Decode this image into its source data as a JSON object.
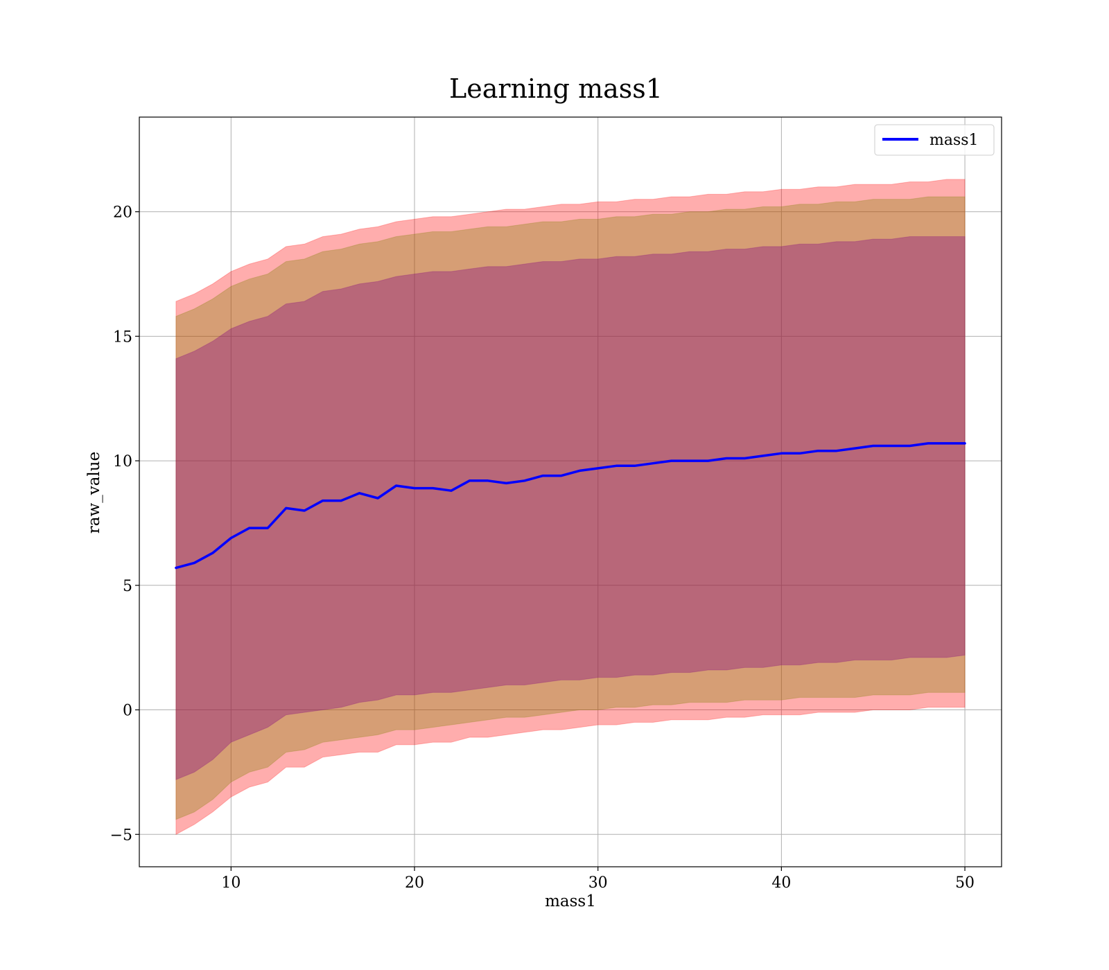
{
  "chart_data": {
    "type": "line",
    "title": "Learning mass1",
    "xlabel": "mass1",
    "ylabel": "raw_value",
    "xlim": [
      5,
      52
    ],
    "ylim": [
      -6.3,
      23.8
    ],
    "xticks": [
      10,
      20,
      30,
      40,
      50
    ],
    "yticks": [
      -5,
      0,
      5,
      10,
      15,
      20
    ],
    "xtick_labels": [
      "10",
      "20",
      "30",
      "40",
      "50"
    ],
    "ytick_labels": [
      "−5",
      "0",
      "5",
      "10",
      "15",
      "20"
    ],
    "grid": true,
    "legend": {
      "placement": "top-right",
      "entries": [
        "mass1"
      ]
    },
    "colors": {
      "line": "#0000ff",
      "band": "#ff0000",
      "band_inner": "#800080",
      "band_mid": "#808000"
    },
    "series": [
      {
        "name": "mass1",
        "x": [
          7,
          8,
          9,
          10,
          11,
          12,
          13,
          14,
          15,
          16,
          17,
          18,
          19,
          20,
          21,
          22,
          23,
          24,
          25,
          26,
          27,
          28,
          29,
          30,
          31,
          32,
          33,
          34,
          35,
          36,
          37,
          38,
          39,
          40,
          41,
          42,
          43,
          44,
          45,
          46,
          47,
          48,
          49,
          50
        ],
        "y": [
          5.7,
          5.9,
          6.3,
          6.9,
          7.3,
          7.3,
          8.1,
          8.0,
          8.4,
          8.4,
          8.7,
          8.5,
          9.0,
          8.9,
          8.9,
          8.8,
          9.2,
          9.2,
          9.1,
          9.2,
          9.4,
          9.4,
          9.6,
          9.7,
          9.8,
          9.8,
          9.9,
          10.0,
          10.0,
          10.0,
          10.1,
          10.1,
          10.2,
          10.3,
          10.3,
          10.4,
          10.4,
          10.5,
          10.6,
          10.6,
          10.6,
          10.7,
          10.7,
          10.7
        ],
        "bands": [
          {
            "level": "outer",
            "lower": [
              -5.0,
              -4.6,
              -4.1,
              -3.5,
              -3.1,
              -2.9,
              -2.3,
              -2.3,
              -1.9,
              -1.8,
              -1.7,
              -1.7,
              -1.4,
              -1.4,
              -1.3,
              -1.3,
              -1.1,
              -1.1,
              -1.0,
              -0.9,
              -0.8,
              -0.8,
              -0.7,
              -0.6,
              -0.6,
              -0.5,
              -0.5,
              -0.4,
              -0.4,
              -0.4,
              -0.3,
              -0.3,
              -0.2,
              -0.2,
              -0.2,
              -0.1,
              -0.1,
              -0.1,
              0.0,
              0.0,
              0.0,
              0.1,
              0.1,
              0.1
            ],
            "upper": [
              16.4,
              16.7,
              17.1,
              17.6,
              17.9,
              18.1,
              18.6,
              18.7,
              19.0,
              19.1,
              19.3,
              19.4,
              19.6,
              19.7,
              19.8,
              19.8,
              19.9,
              20.0,
              20.1,
              20.1,
              20.2,
              20.3,
              20.3,
              20.4,
              20.4,
              20.5,
              20.5,
              20.6,
              20.6,
              20.7,
              20.7,
              20.8,
              20.8,
              20.9,
              20.9,
              21.0,
              21.0,
              21.1,
              21.1,
              21.1,
              21.2,
              21.2,
              21.3,
              21.3
            ]
          },
          {
            "level": "middle",
            "lower": [
              -4.4,
              -4.1,
              -3.6,
              -2.9,
              -2.5,
              -2.3,
              -1.7,
              -1.6,
              -1.3,
              -1.2,
              -1.1,
              -1.0,
              -0.8,
              -0.8,
              -0.7,
              -0.6,
              -0.5,
              -0.4,
              -0.3,
              -0.3,
              -0.2,
              -0.1,
              0.0,
              0.0,
              0.1,
              0.1,
              0.2,
              0.2,
              0.3,
              0.3,
              0.3,
              0.4,
              0.4,
              0.4,
              0.5,
              0.5,
              0.5,
              0.5,
              0.6,
              0.6,
              0.6,
              0.7,
              0.7,
              0.7
            ],
            "upper": [
              15.8,
              16.1,
              16.5,
              17.0,
              17.3,
              17.5,
              18.0,
              18.1,
              18.4,
              18.5,
              18.7,
              18.8,
              19.0,
              19.1,
              19.2,
              19.2,
              19.3,
              19.4,
              19.4,
              19.5,
              19.6,
              19.6,
              19.7,
              19.7,
              19.8,
              19.8,
              19.9,
              19.9,
              20.0,
              20.0,
              20.1,
              20.1,
              20.2,
              20.2,
              20.3,
              20.3,
              20.4,
              20.4,
              20.5,
              20.5,
              20.5,
              20.6,
              20.6,
              20.6
            ]
          },
          {
            "level": "inner",
            "lower": [
              -2.8,
              -2.5,
              -2.0,
              -1.3,
              -1.0,
              -0.7,
              -0.2,
              -0.1,
              0.0,
              0.1,
              0.3,
              0.4,
              0.6,
              0.6,
              0.7,
              0.7,
              0.8,
              0.9,
              1.0,
              1.0,
              1.1,
              1.2,
              1.2,
              1.3,
              1.3,
              1.4,
              1.4,
              1.5,
              1.5,
              1.6,
              1.6,
              1.7,
              1.7,
              1.8,
              1.8,
              1.9,
              1.9,
              2.0,
              2.0,
              2.0,
              2.1,
              2.1,
              2.1,
              2.2
            ],
            "upper": [
              14.1,
              14.4,
              14.8,
              15.3,
              15.6,
              15.8,
              16.3,
              16.4,
              16.8,
              16.9,
              17.1,
              17.2,
              17.4,
              17.5,
              17.6,
              17.6,
              17.7,
              17.8,
              17.8,
              17.9,
              18.0,
              18.0,
              18.1,
              18.1,
              18.2,
              18.2,
              18.3,
              18.3,
              18.4,
              18.4,
              18.5,
              18.5,
              18.6,
              18.6,
              18.7,
              18.7,
              18.8,
              18.8,
              18.9,
              18.9,
              19.0,
              19.0,
              19.0,
              19.0
            ]
          }
        ]
      }
    ]
  }
}
